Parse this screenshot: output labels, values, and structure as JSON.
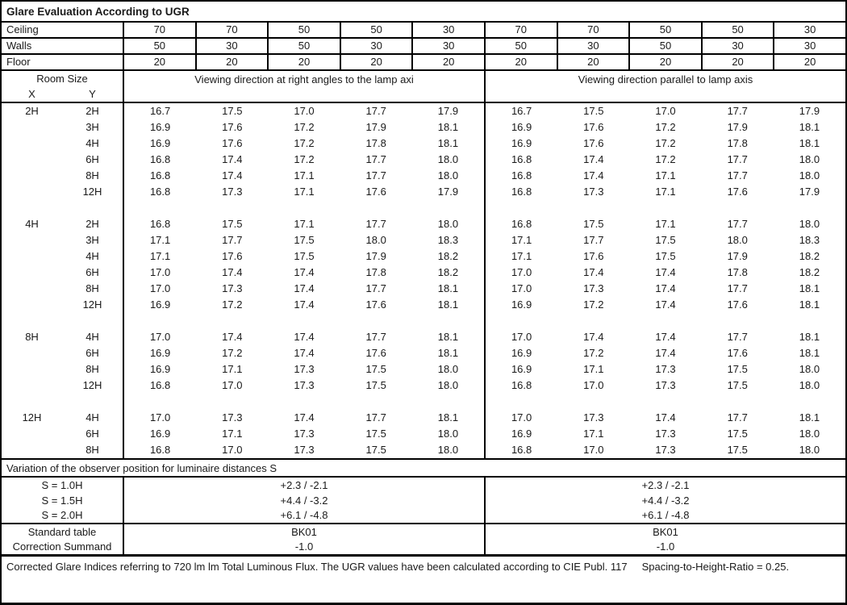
{
  "title": "Glare Evaluation According to UGR",
  "surface_rows": [
    {
      "label": "Ceiling",
      "values": [
        "70",
        "70",
        "50",
        "50",
        "30",
        "70",
        "70",
        "50",
        "50",
        "30"
      ]
    },
    {
      "label": "Walls",
      "values": [
        "50",
        "30",
        "50",
        "30",
        "30",
        "50",
        "30",
        "50",
        "30",
        "30"
      ]
    },
    {
      "label": "Floor",
      "values": [
        "20",
        "20",
        "20",
        "20",
        "20",
        "20",
        "20",
        "20",
        "20",
        "20"
      ]
    }
  ],
  "header": {
    "room_size": "Room Size",
    "x_label": "X",
    "y_label": "Y",
    "left_group": "Viewing direction at right angles to the lamp axi",
    "right_group": "Viewing direction parallel to lamp axis"
  },
  "body_rows": [
    {
      "x": "2H",
      "y": "2H",
      "values": [
        "16.7",
        "17.5",
        "17.0",
        "17.7",
        "17.9",
        "16.7",
        "17.5",
        "17.0",
        "17.7",
        "17.9"
      ]
    },
    {
      "x": "",
      "y": "3H",
      "values": [
        "16.9",
        "17.6",
        "17.2",
        "17.9",
        "18.1",
        "16.9",
        "17.6",
        "17.2",
        "17.9",
        "18.1"
      ]
    },
    {
      "x": "",
      "y": "4H",
      "values": [
        "16.9",
        "17.6",
        "17.2",
        "17.8",
        "18.1",
        "16.9",
        "17.6",
        "17.2",
        "17.8",
        "18.1"
      ]
    },
    {
      "x": "",
      "y": "6H",
      "values": [
        "16.8",
        "17.4",
        "17.2",
        "17.7",
        "18.0",
        "16.8",
        "17.4",
        "17.2",
        "17.7",
        "18.0"
      ]
    },
    {
      "x": "",
      "y": "8H",
      "values": [
        "16.8",
        "17.4",
        "17.1",
        "17.7",
        "18.0",
        "16.8",
        "17.4",
        "17.1",
        "17.7",
        "18.0"
      ]
    },
    {
      "x": "",
      "y": "12H",
      "values": [
        "16.8",
        "17.3",
        "17.1",
        "17.6",
        "17.9",
        "16.8",
        "17.3",
        "17.1",
        "17.6",
        "17.9"
      ]
    },
    {
      "x": "",
      "y": "",
      "values": [
        "",
        "",
        "",
        "",
        "",
        "",
        "",
        "",
        "",
        ""
      ]
    },
    {
      "x": "4H",
      "y": "2H",
      "values": [
        "16.8",
        "17.5",
        "17.1",
        "17.7",
        "18.0",
        "16.8",
        "17.5",
        "17.1",
        "17.7",
        "18.0"
      ]
    },
    {
      "x": "",
      "y": "3H",
      "values": [
        "17.1",
        "17.7",
        "17.5",
        "18.0",
        "18.3",
        "17.1",
        "17.7",
        "17.5",
        "18.0",
        "18.3"
      ]
    },
    {
      "x": "",
      "y": "4H",
      "values": [
        "17.1",
        "17.6",
        "17.5",
        "17.9",
        "18.2",
        "17.1",
        "17.6",
        "17.5",
        "17.9",
        "18.2"
      ]
    },
    {
      "x": "",
      "y": "6H",
      "values": [
        "17.0",
        "17.4",
        "17.4",
        "17.8",
        "18.2",
        "17.0",
        "17.4",
        "17.4",
        "17.8",
        "18.2"
      ]
    },
    {
      "x": "",
      "y": "8H",
      "values": [
        "17.0",
        "17.3",
        "17.4",
        "17.7",
        "18.1",
        "17.0",
        "17.3",
        "17.4",
        "17.7",
        "18.1"
      ]
    },
    {
      "x": "",
      "y": "12H",
      "values": [
        "16.9",
        "17.2",
        "17.4",
        "17.6",
        "18.1",
        "16.9",
        "17.2",
        "17.4",
        "17.6",
        "18.1"
      ]
    },
    {
      "x": "",
      "y": "",
      "values": [
        "",
        "",
        "",
        "",
        "",
        "",
        "",
        "",
        "",
        ""
      ]
    },
    {
      "x": "8H",
      "y": "4H",
      "values": [
        "17.0",
        "17.4",
        "17.4",
        "17.7",
        "18.1",
        "17.0",
        "17.4",
        "17.4",
        "17.7",
        "18.1"
      ]
    },
    {
      "x": "",
      "y": "6H",
      "values": [
        "16.9",
        "17.2",
        "17.4",
        "17.6",
        "18.1",
        "16.9",
        "17.2",
        "17.4",
        "17.6",
        "18.1"
      ]
    },
    {
      "x": "",
      "y": "8H",
      "values": [
        "16.9",
        "17.1",
        "17.3",
        "17.5",
        "18.0",
        "16.9",
        "17.1",
        "17.3",
        "17.5",
        "18.0"
      ]
    },
    {
      "x": "",
      "y": "12H",
      "values": [
        "16.8",
        "17.0",
        "17.3",
        "17.5",
        "18.0",
        "16.8",
        "17.0",
        "17.3",
        "17.5",
        "18.0"
      ]
    },
    {
      "x": "",
      "y": "",
      "values": [
        "",
        "",
        "",
        "",
        "",
        "",
        "",
        "",
        "",
        ""
      ]
    },
    {
      "x": "12H",
      "y": "4H",
      "values": [
        "17.0",
        "17.3",
        "17.4",
        "17.7",
        "18.1",
        "17.0",
        "17.3",
        "17.4",
        "17.7",
        "18.1"
      ]
    },
    {
      "x": "",
      "y": "6H",
      "values": [
        "16.9",
        "17.1",
        "17.3",
        "17.5",
        "18.0",
        "16.9",
        "17.1",
        "17.3",
        "17.5",
        "18.0"
      ]
    },
    {
      "x": "",
      "y": "8H",
      "values": [
        "16.8",
        "17.0",
        "17.3",
        "17.5",
        "18.0",
        "16.8",
        "17.0",
        "17.3",
        "17.5",
        "18.0"
      ]
    }
  ],
  "variation_label": "Variation of the observer position for luminaire distances S",
  "s_rows": [
    {
      "label": "S = 1.0H",
      "left": "+2.3 / -2.1",
      "right": "+2.3 / -2.1"
    },
    {
      "label": "S = 1.5H",
      "left": "+4.4 / -3.2",
      "right": "+4.4 / -3.2"
    },
    {
      "label": "S = 2.0H",
      "left": "+6.1 / -4.8",
      "right": "+6.1 / -4.8"
    }
  ],
  "summary_rows": [
    {
      "label": "Standard table",
      "left": "BK01",
      "right": "BK01"
    },
    {
      "label": "Correction Summand",
      "left": "-1.0",
      "right": "-1.0"
    }
  ],
  "footer": "Corrected Glare Indices referring to 720 lm lm Total Luminous Flux. The UGR values have been calculated according to CIE Publ. 117     Spacing-to-Height-Ratio = 0.25.",
  "colors": {
    "border": "#000000",
    "text": "#1a1a1a",
    "background": "#ffffff"
  }
}
